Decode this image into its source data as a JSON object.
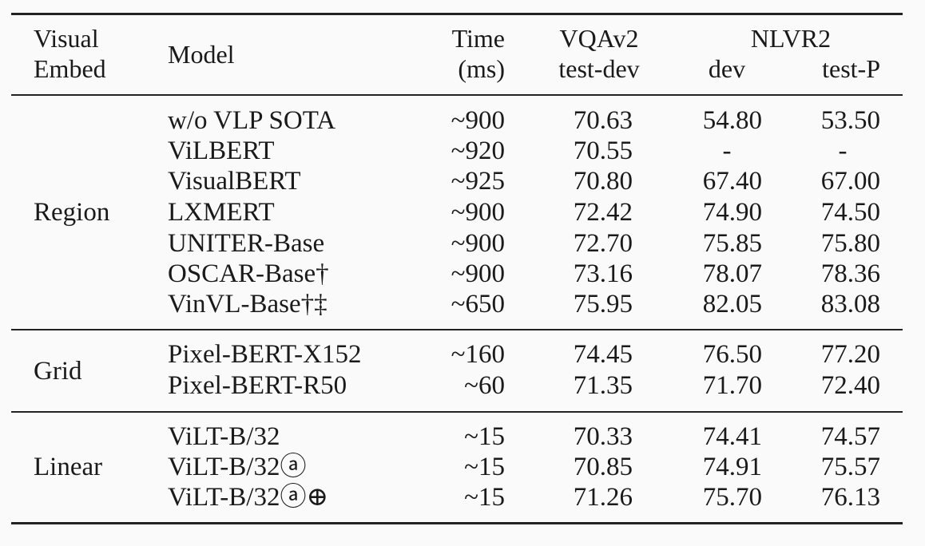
{
  "header": {
    "visual_embed_line1": "Visual",
    "visual_embed_line2": "Embed",
    "model": "Model",
    "time_line1": "Time",
    "time_line2": "(ms)",
    "vqa_line1": "VQAv2",
    "vqa_line2": "test-dev",
    "nlvr2": "NLVR2",
    "nlvr2_dev": "dev",
    "nlvr2_testp": "test-P"
  },
  "groups": [
    {
      "label": "Region",
      "rows": [
        {
          "model": "w/o VLP SOTA",
          "time": "~900",
          "vqa": "70.63",
          "dev": "54.80",
          "testp": "53.50"
        },
        {
          "model": "ViLBERT",
          "time": "~920",
          "vqa": "70.55",
          "dev": "-",
          "testp": "-"
        },
        {
          "model": "VisualBERT",
          "time": "~925",
          "vqa": "70.80",
          "dev": "67.40",
          "testp": "67.00"
        },
        {
          "model": "LXMERT",
          "time": "~900",
          "vqa": "72.42",
          "dev": "74.90",
          "testp": "74.50"
        },
        {
          "model": "UNITER-Base",
          "time": "~900",
          "vqa": "72.70",
          "dev": "75.85",
          "testp": "75.80"
        },
        {
          "model": "OSCAR-Base†",
          "time": "~900",
          "vqa": "73.16",
          "dev": "78.07",
          "testp": "78.36"
        },
        {
          "model": "VinVL-Base†‡",
          "time": "~650",
          "vqa": "75.95",
          "dev": "82.05",
          "testp": "83.08"
        }
      ]
    },
    {
      "label": "Grid",
      "rows": [
        {
          "model": "Pixel-BERT-X152",
          "time": "~160",
          "vqa": "74.45",
          "dev": "76.50",
          "testp": "77.20"
        },
        {
          "model": "Pixel-BERT-R50",
          "time": "~60",
          "vqa": "71.35",
          "dev": "71.70",
          "testp": "72.40"
        }
      ]
    },
    {
      "label": "Linear",
      "rows": [
        {
          "model": "ViLT-B/32",
          "time": "~15",
          "vqa": "70.33",
          "dev": "74.41",
          "testp": "74.57"
        },
        {
          "model": "ViLT-B/32ⓐ",
          "time": "~15",
          "vqa": "70.85",
          "dev": "74.91",
          "testp": "75.57"
        },
        {
          "model": "ViLT-B/32ⓐ⊕",
          "time": "~15",
          "vqa": "71.26",
          "dev": "75.70",
          "testp": "76.13"
        }
      ]
    }
  ]
}
